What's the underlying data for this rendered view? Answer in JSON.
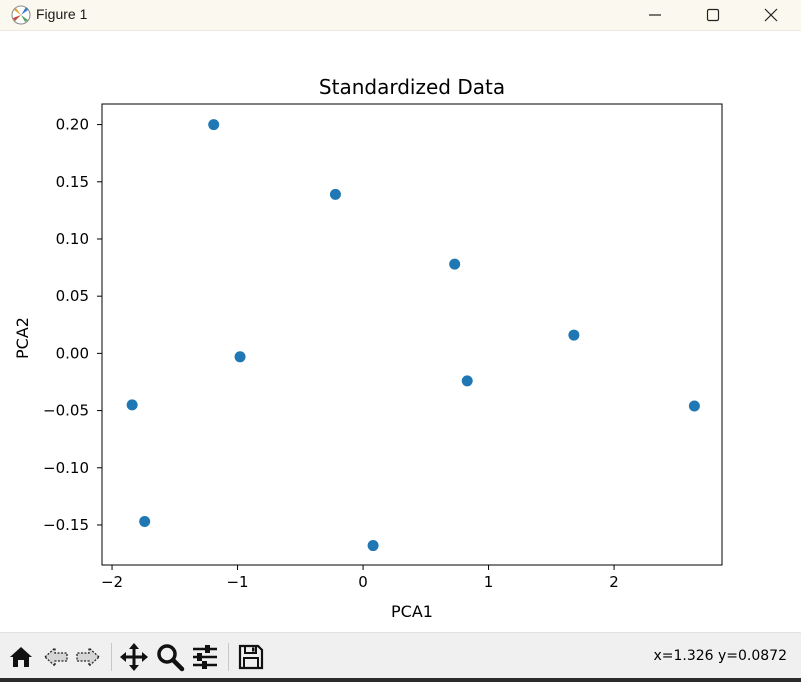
{
  "window": {
    "title": "Figure 1",
    "icon": "matplotlib-app-icon",
    "controls": [
      "minimize-icon",
      "maximize-icon",
      "close-icon"
    ]
  },
  "toolbar": {
    "buttons": [
      "home-icon",
      "back-icon",
      "forward-icon",
      "pan-icon",
      "zoom-icon",
      "configure-subplots-icon",
      "save-icon"
    ],
    "coords_text": "x=1.326 y=0.0872"
  },
  "chart_data": {
    "type": "scatter",
    "title": "Standardized Data",
    "xlabel": "PCA1",
    "ylabel": "PCA2",
    "xlim": [
      -2.08,
      2.86
    ],
    "ylim": [
      -0.185,
      0.218
    ],
    "xticks": [
      -2,
      -1,
      0,
      1,
      2
    ],
    "xtick_labels": [
      "−2",
      "−1",
      "0",
      "1",
      "2"
    ],
    "yticks": [
      0.2,
      0.15,
      0.1,
      0.05,
      0.0,
      -0.05,
      -0.1,
      -0.15
    ],
    "ytick_labels": [
      "0.20",
      "0.15",
      "0.10",
      "0.05",
      "0.00",
      "−0.05",
      "−0.10",
      "−0.15"
    ],
    "grid": false,
    "marker_color": "#1f77b4",
    "points": [
      {
        "x": -1.19,
        "y": 0.2
      },
      {
        "x": -0.22,
        "y": 0.139
      },
      {
        "x": 0.73,
        "y": 0.078
      },
      {
        "x": 1.68,
        "y": 0.016
      },
      {
        "x": -0.98,
        "y": -0.003
      },
      {
        "x": 0.83,
        "y": -0.024
      },
      {
        "x": -1.84,
        "y": -0.045
      },
      {
        "x": 2.64,
        "y": -0.046
      },
      {
        "x": -1.74,
        "y": -0.147
      },
      {
        "x": 0.08,
        "y": -0.168
      }
    ]
  }
}
